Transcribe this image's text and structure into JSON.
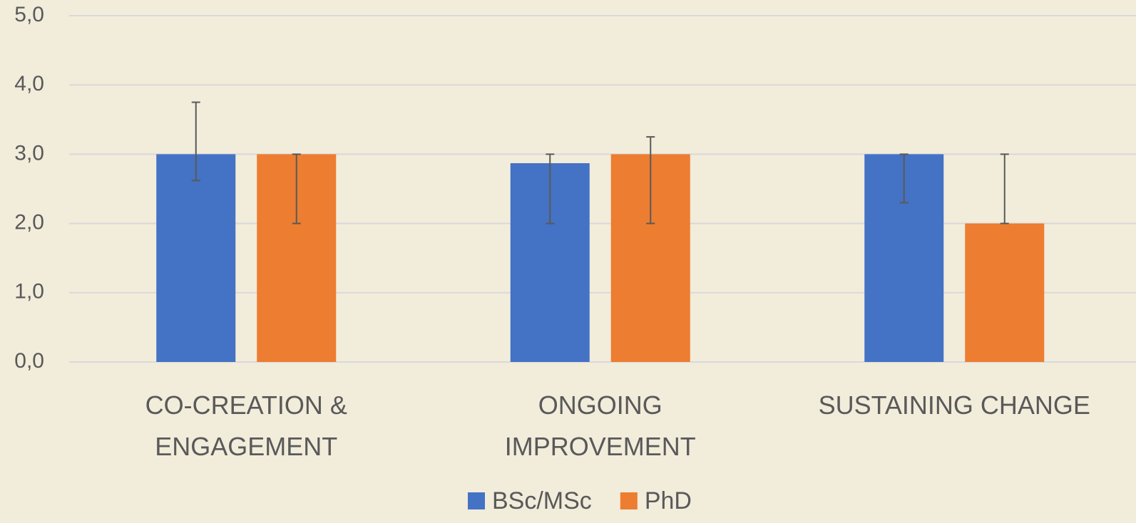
{
  "chart_data": {
    "type": "bar",
    "categories": [
      "CO-CREATION & ENGAGEMENT",
      "ONGOING IMPROVEMENT",
      "SUSTAINING CHANGE"
    ],
    "series": [
      {
        "name": "BSc/MSc",
        "color": "#4472c4",
        "values": [
          3.0,
          2.87,
          3.0
        ],
        "error_plus": [
          0.75,
          0.13,
          0.0
        ],
        "error_minus": [
          0.38,
          0.87,
          0.7
        ]
      },
      {
        "name": "PhD",
        "color": "#ed7d31",
        "values": [
          3.0,
          3.0,
          2.0
        ],
        "error_plus": [
          0.0,
          0.25,
          1.0
        ],
        "error_minus": [
          1.0,
          1.0,
          0.0
        ]
      }
    ],
    "ylim": [
      0,
      5
    ],
    "yticks": [
      {
        "value": 0,
        "label": "0,0"
      },
      {
        "value": 1,
        "label": "1,0"
      },
      {
        "value": 2,
        "label": "2,0"
      },
      {
        "value": 3,
        "label": "3,0"
      },
      {
        "value": 4,
        "label": "4,0"
      },
      {
        "value": 5,
        "label": "5,0"
      }
    ],
    "grid": true,
    "legend": "bottom"
  }
}
